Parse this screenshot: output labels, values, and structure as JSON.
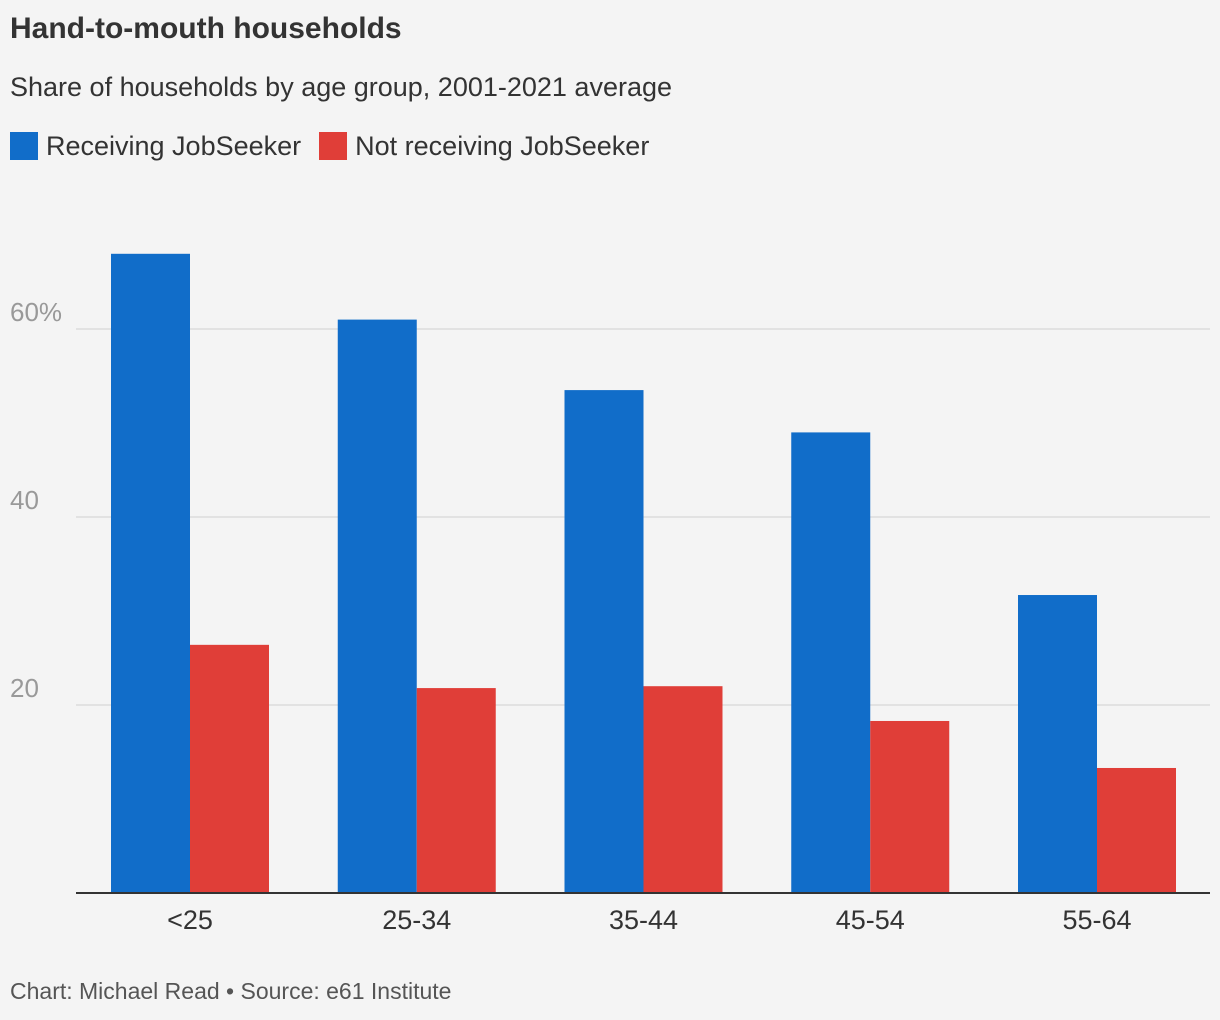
{
  "title": "Hand-to-mouth households",
  "subtitle": "Share of households by age group, 2001-2021 average",
  "footer": "Chart: Michael Read • Source: e61 Institute",
  "colors": {
    "background": "#f4f4f4",
    "receiving": "#116dc9",
    "not_receiving": "#e03e38",
    "gridline": "#dcdcdc",
    "axis": "#333333",
    "tick_text": "#999999"
  },
  "chart_data": {
    "type": "bar",
    "categories": [
      "<25",
      "25-34",
      "35-44",
      "45-54",
      "55-64"
    ],
    "series": [
      {
        "name": "Receiving JobSeeker",
        "values": [
          68,
          61,
          53.5,
          49,
          31.7
        ]
      },
      {
        "name": "Not receiving JobSeeker",
        "values": [
          26.4,
          21.8,
          22,
          18.3,
          13.3
        ]
      }
    ],
    "y_ticks": [
      {
        "value": 20,
        "label": "20"
      },
      {
        "value": 40,
        "label": "40"
      },
      {
        "value": 60,
        "label": "60%"
      }
    ],
    "ylim": [
      0,
      70
    ],
    "grid": true,
    "legend_position": "top-left"
  }
}
